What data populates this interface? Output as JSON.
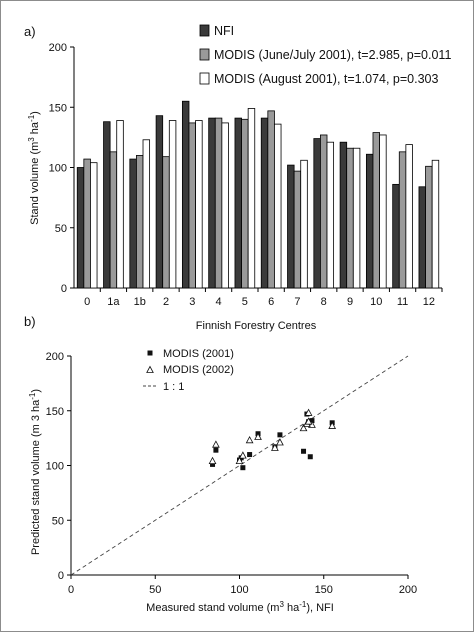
{
  "chart_data": [
    {
      "type": "bar",
      "panel_label": "a)",
      "xlabel": "Finnish Forestry Centres",
      "ylabel": "Stand volume (m³ ha⁻¹)",
      "ylim": [
        0,
        200
      ],
      "yticks": [
        0,
        50,
        100,
        150,
        200
      ],
      "categories": [
        "0",
        "1a",
        "1b",
        "2",
        "3",
        "4",
        "5",
        "6",
        "7",
        "8",
        "9",
        "10",
        "11",
        "12"
      ],
      "series": [
        {
          "name": "NFI",
          "color": "#3a3a3a",
          "values": [
            100,
            138,
            107,
            143,
            155,
            141,
            141,
            141,
            102,
            124,
            121,
            111,
            86,
            84
          ]
        },
        {
          "name": "MODIS (June/July 2001), t=2.985, p=0.011",
          "color": "#9a9a9a",
          "values": [
            107,
            113,
            110,
            109,
            137,
            141,
            140,
            147,
            97,
            127,
            116,
            129,
            113,
            101
          ]
        },
        {
          "name": "MODIS (August 2001), t=1.074, p=0.303",
          "color": "#ffffff",
          "values": [
            104,
            139,
            123,
            139,
            139,
            137,
            149,
            136,
            106,
            121,
            116,
            127,
            119,
            106
          ]
        }
      ],
      "grid": false,
      "legend_position": "top-right"
    },
    {
      "type": "scatter",
      "panel_label": "b)",
      "xlabel": "Measured stand volume (m³ ha⁻¹), NFI",
      "ylabel": "Predicted stand volume (m 3 ha⁻¹)",
      "xlim": [
        0,
        200
      ],
      "ylim": [
        0,
        200
      ],
      "xticks": [
        0,
        50,
        100,
        150,
        200
      ],
      "yticks": [
        0,
        50,
        100,
        150,
        200
      ],
      "series": [
        {
          "name": "MODIS (2001)",
          "marker": "square",
          "points": [
            [
              84,
              101
            ],
            [
              86,
              114
            ],
            [
              100,
              105
            ],
            [
              101,
              107
            ],
            [
              102,
              98
            ],
            [
              106,
              110
            ],
            [
              111,
              129
            ],
            [
              121,
              117
            ],
            [
              124,
              128
            ],
            [
              138,
              113
            ],
            [
              141,
              140
            ],
            [
              142,
              108
            ],
            [
              143,
              141
            ],
            [
              155,
              139
            ],
            [
              140,
              147
            ]
          ]
        },
        {
          "name": "MODIS (2002)",
          "marker": "triangle",
          "points": [
            [
              84,
              104
            ],
            [
              86,
              119
            ],
            [
              100,
              104
            ],
            [
              102,
              109
            ],
            [
              106,
              123
            ],
            [
              111,
              126
            ],
            [
              121,
              116
            ],
            [
              124,
              121
            ],
            [
              138,
              134
            ],
            [
              141,
              148
            ],
            [
              143,
              137
            ],
            [
              155,
              136
            ],
            [
              140,
              138
            ],
            [
              141,
              140
            ]
          ]
        }
      ],
      "reference_line": {
        "name": "1 : 1",
        "style": "dashed"
      },
      "grid": false,
      "legend_position": "top-left"
    }
  ]
}
